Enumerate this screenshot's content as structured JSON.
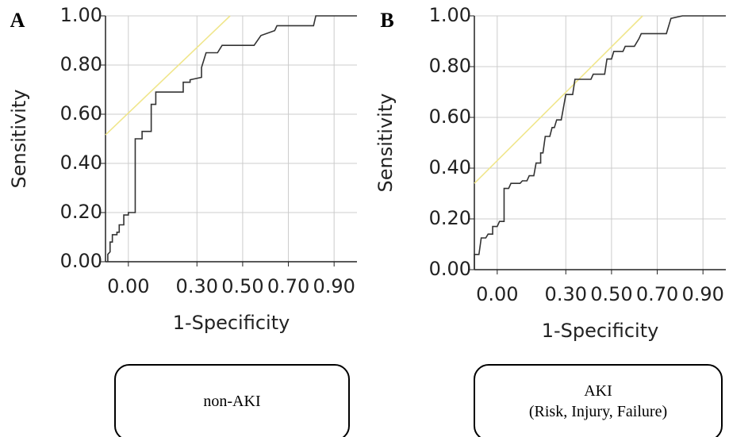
{
  "chart_data": [
    {
      "type": "line",
      "panel_label": "A",
      "y_label": "Sensitivity",
      "x_label": "1-Specificity",
      "caption": [
        "non-AKI"
      ],
      "xlim": [
        -0.1,
        1.0
      ],
      "ylim": [
        0,
        1
      ],
      "xticks": [
        {
          "value": 0,
          "label": "0.00"
        },
        {
          "value": 0.3,
          "label": "0.30"
        },
        {
          "value": 0.5,
          "label": "0.50"
        },
        {
          "value": 0.7,
          "label": "0.70"
        },
        {
          "value": 0.9,
          "label": "0.90"
        }
      ],
      "yticks": [
        {
          "value": 0,
          "label": "0.00"
        },
        {
          "value": 0.2,
          "label": "0.20"
        },
        {
          "value": 0.4,
          "label": "0.40"
        },
        {
          "value": 0.6,
          "label": "0.60"
        },
        {
          "value": 0.8,
          "label": "0.80"
        },
        {
          "value": 1,
          "label": "1.00"
        }
      ],
      "grid": true,
      "series": [
        {
          "color": "#f0e68c",
          "x": [
            -0.1,
            0.445
          ],
          "values": [
            0.516,
            1.0
          ]
        },
        {
          "color": "#333333",
          "x": [
            -0.09,
            -0.09,
            -0.08,
            -0.08,
            -0.07,
            -0.07,
            -0.05,
            -0.05,
            -0.04,
            -0.04,
            -0.02,
            -0.02,
            0.0,
            0.0,
            0.03,
            0.03,
            0.06,
            0.06,
            0.1,
            0.1,
            0.12,
            0.12,
            0.24,
            0.24,
            0.27,
            0.27,
            0.32,
            0.32,
            0.34,
            0.39,
            0.41,
            0.55,
            0.58,
            0.64,
            0.65,
            0.81,
            0.82,
            1.0
          ],
          "values": [
            0.0,
            0.03,
            0.04,
            0.08,
            0.08,
            0.11,
            0.11,
            0.12,
            0.12,
            0.15,
            0.15,
            0.19,
            0.19,
            0.2,
            0.2,
            0.5,
            0.5,
            0.53,
            0.53,
            0.64,
            0.64,
            0.69,
            0.69,
            0.73,
            0.73,
            0.74,
            0.75,
            0.79,
            0.85,
            0.85,
            0.88,
            0.88,
            0.92,
            0.94,
            0.96,
            0.96,
            1.0,
            1.0
          ]
        }
      ]
    },
    {
      "type": "line",
      "panel_label": "B",
      "y_label": "Sensitivity",
      "x_label": "1-Specificity",
      "caption": [
        "AKI",
        "(Risk, Injury, Failure)"
      ],
      "xlim": [
        -0.1,
        1.0
      ],
      "ylim": [
        0,
        1
      ],
      "xticks": [
        {
          "value": 0,
          "label": "0.00"
        },
        {
          "value": 0.3,
          "label": "0.30"
        },
        {
          "value": 0.5,
          "label": "0.50"
        },
        {
          "value": 0.7,
          "label": "0.70"
        },
        {
          "value": 0.9,
          "label": "0.90"
        }
      ],
      "yticks": [
        {
          "value": 0,
          "label": "0.00"
        },
        {
          "value": 0.2,
          "label": "0.20"
        },
        {
          "value": 0.4,
          "label": "0.40"
        },
        {
          "value": 0.6,
          "label": "0.60"
        },
        {
          "value": 0.8,
          "label": "0.80"
        },
        {
          "value": 1,
          "label": "1.00"
        }
      ],
      "grid": true,
      "series": [
        {
          "color": "#f0e68c",
          "x": [
            -0.1,
            0.636
          ],
          "values": [
            0.34,
            1.0
          ]
        },
        {
          "color": "#333333",
          "x": [
            -0.1,
            -0.1,
            -0.08,
            -0.07,
            -0.05,
            -0.04,
            -0.02,
            -0.02,
            0.0,
            0.01,
            0.03,
            0.03,
            0.05,
            0.06,
            0.1,
            0.11,
            0.13,
            0.14,
            0.16,
            0.17,
            0.19,
            0.19,
            0.2,
            0.21,
            0.23,
            0.24,
            0.25,
            0.26,
            0.28,
            0.3,
            0.33,
            0.34,
            0.41,
            0.42,
            0.47,
            0.48,
            0.5,
            0.51,
            0.55,
            0.56,
            0.6,
            0.62,
            0.63,
            0.74,
            0.76,
            0.81,
            1.0
          ],
          "values": [
            0.0,
            0.06,
            0.06,
            0.125,
            0.125,
            0.14,
            0.14,
            0.17,
            0.17,
            0.19,
            0.19,
            0.32,
            0.32,
            0.34,
            0.34,
            0.35,
            0.35,
            0.37,
            0.37,
            0.42,
            0.42,
            0.46,
            0.46,
            0.525,
            0.525,
            0.56,
            0.56,
            0.59,
            0.59,
            0.69,
            0.69,
            0.75,
            0.75,
            0.77,
            0.77,
            0.83,
            0.83,
            0.86,
            0.86,
            0.88,
            0.88,
            0.91,
            0.93,
            0.93,
            0.99,
            1.0,
            1.0
          ]
        }
      ]
    }
  ]
}
